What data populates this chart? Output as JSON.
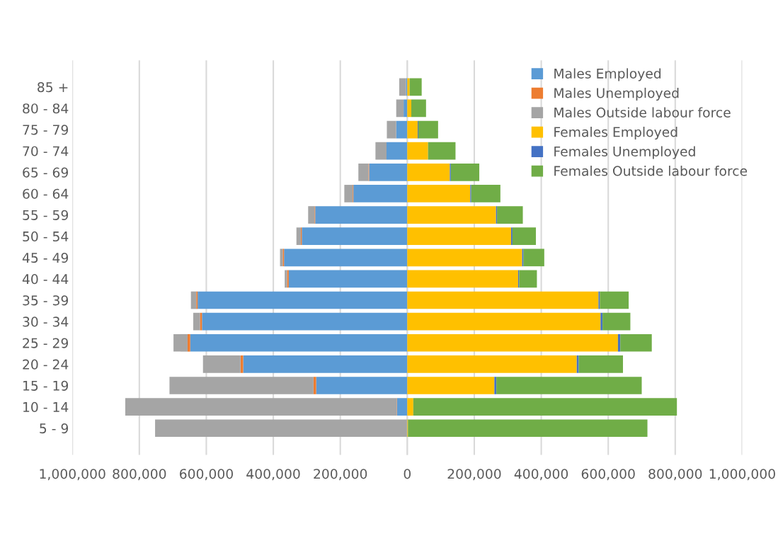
{
  "chart_data": {
    "type": "bar",
    "orientation": "horizontal",
    "stacked": true,
    "categories": [
      "85 +",
      "80 - 84",
      "75 - 79",
      "70 - 74",
      "65 - 69",
      "60 - 64",
      "55 - 59",
      "50 - 54",
      "45 - 49",
      "40 - 44",
      "35 - 39",
      "30 - 34",
      "25 - 29",
      "20 - 24",
      "15 - 19",
      "10 - 14",
      "5 - 9"
    ],
    "series": [
      {
        "name": "Males Employed",
        "color": "#5b9bd5",
        "values": [
          -4000,
          -11000,
          -33000,
          -62000,
          -114000,
          -161000,
          -275000,
          -315000,
          -368000,
          -354000,
          -626000,
          -613000,
          -648000,
          -490000,
          -272000,
          -31000,
          -1000
        ]
      },
      {
        "name": "Males Unemployed",
        "color": "#ed7d31",
        "values": [
          0,
          0,
          null,
          null,
          -2000,
          -2000,
          -2000,
          -3000,
          -4000,
          -5000,
          -4000,
          -6000,
          -8000,
          -8000,
          -8000,
          -1000,
          0
        ]
      },
      {
        "name": "Males Outside labour force",
        "color": "#a5a5a5",
        "values": [
          -20000,
          -22000,
          -28000,
          -33000,
          -30000,
          -25000,
          -19000,
          -13000,
          -8000,
          -7000,
          -16000,
          -20000,
          -42000,
          -112000,
          -430000,
          -810000,
          -752000
        ]
      },
      {
        "name": "Females Employed",
        "color": "#ffc000",
        "values": [
          7000,
          12000,
          31000,
          62000,
          127000,
          188000,
          265000,
          310000,
          343000,
          331000,
          571000,
          577000,
          629000,
          506000,
          260000,
          18000,
          2000
        ]
      },
      {
        "name": "Females Unemployed",
        "color": "#4472c4",
        "values": [
          0,
          0,
          2000,
          null,
          3000,
          3000,
          3000,
          4000,
          4000,
          3000,
          4000,
          6000,
          7000,
          6000,
          6000,
          null,
          0
        ]
      },
      {
        "name": "Females Outside labour force",
        "color": "#70ad47",
        "values": [
          36000,
          44000,
          59000,
          82000,
          85000,
          87000,
          77000,
          70000,
          62000,
          53000,
          86000,
          83000,
          94000,
          132000,
          434000,
          787000,
          715000
        ]
      }
    ],
    "xlim": [
      -1000000,
      1000000
    ],
    "xticks": [
      {
        "value": -1000000,
        "label": "1,000,000"
      },
      {
        "value": -800000,
        "label": "800,000"
      },
      {
        "value": -600000,
        "label": "600,000"
      },
      {
        "value": -400000,
        "label": "400,000"
      },
      {
        "value": -200000,
        "label": "200,000"
      },
      0,
      {
        "value": 200000,
        "label": "200,000"
      },
      {
        "value": 400000,
        "label": "400,000"
      },
      {
        "value": 600000,
        "label": "600,000"
      },
      {
        "value": 800000,
        "label": "800,000"
      },
      {
        "value": 1000000,
        "label": "1,000,000"
      }
    ],
    "grid": "x",
    "legend": "top right"
  }
}
